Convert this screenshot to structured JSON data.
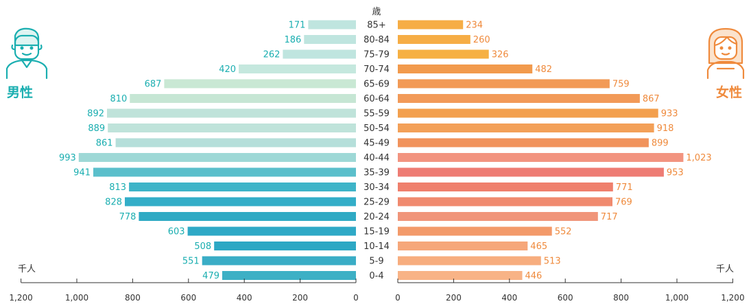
{
  "labels": {
    "age_unit": "歳",
    "male": "男性",
    "female": "女性",
    "unit_left": "千人",
    "unit_right": "千人"
  },
  "colors": {
    "male": "#1aaeb0",
    "female": "#ef8a3c",
    "axis": "#333333"
  },
  "icons": {
    "male": "male-person-icon",
    "female": "female-person-icon"
  },
  "chart_data": {
    "type": "bar",
    "orientation": "horizontal-population-pyramid",
    "categories": [
      "85+",
      "80-84",
      "75-79",
      "70-74",
      "65-69",
      "60-64",
      "55-59",
      "50-54",
      "45-49",
      "40-44",
      "35-39",
      "30-34",
      "25-29",
      "20-24",
      "15-19",
      "10-14",
      "5-9",
      "0-4"
    ],
    "series": [
      {
        "name": "男性",
        "values": [
          171,
          186,
          262,
          420,
          687,
          810,
          892,
          889,
          861,
          993,
          941,
          813,
          828,
          778,
          603,
          508,
          551,
          479
        ]
      },
      {
        "name": "女性",
        "values": [
          234,
          260,
          326,
          482,
          759,
          867,
          933,
          918,
          899,
          1023,
          953,
          771,
          769,
          717,
          552,
          465,
          513,
          446
        ]
      }
    ],
    "xlim": [
      0,
      1200
    ],
    "xticks": [
      0,
      200,
      400,
      600,
      800,
      1000,
      1200
    ],
    "xtick_labels_left": [
      "0",
      "200",
      "400",
      "600",
      "800",
      "1,000",
      "1,200"
    ],
    "xtick_labels_right": [
      "0",
      "200",
      "400",
      "600",
      "800",
      "1,000",
      "1,200"
    ],
    "ylabel": "歳",
    "xlabel": "千人",
    "grid": false
  }
}
